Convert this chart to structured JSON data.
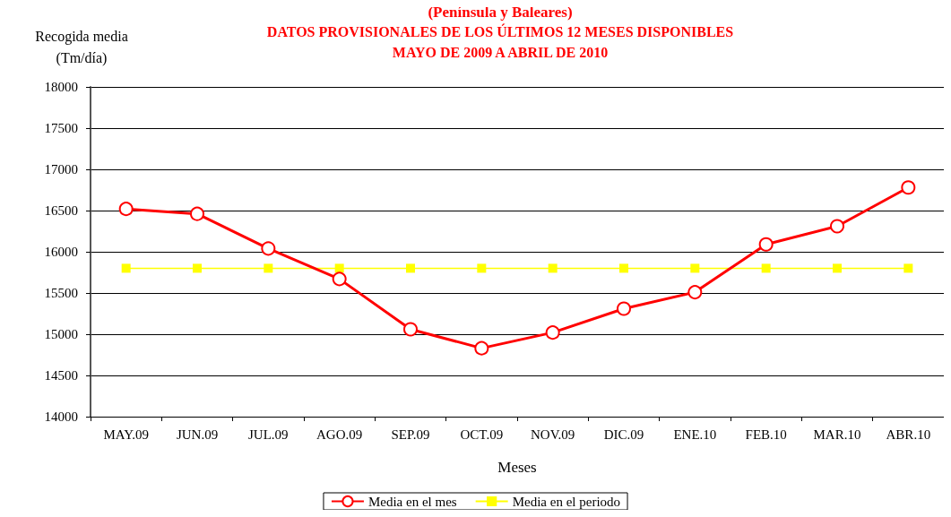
{
  "chart_data": {
    "type": "line",
    "title": "(Península y Baleares)",
    "subtitle": "DATOS PROVISIONALES DE LOS ÚLTIMOS 12 MESES DISPONIBLES\nMAYO DE 2009 A ABRIL DE 2010",
    "xlabel": "Meses",
    "ylabel": "Recogida media\n(Tm/día)",
    "categories": [
      "MAY.09",
      "JUN.09",
      "JUL.09",
      "AGO.09",
      "SEP.09",
      "OCT.09",
      "NOV.09",
      "DIC.09",
      "ENE.10",
      "FEB.10",
      "MAR.10",
      "ABR.10"
    ],
    "series": [
      {
        "name": "Media en el mes",
        "color": "#ff0000",
        "marker": "circle",
        "values": [
          16520,
          16460,
          16040,
          15670,
          15060,
          14830,
          15020,
          15310,
          15510,
          16090,
          16310,
          16780
        ]
      },
      {
        "name": "Media en el periodo",
        "color": "#ffff00",
        "marker": "square",
        "values": [
          15800,
          15800,
          15800,
          15800,
          15800,
          15800,
          15800,
          15800,
          15800,
          15800,
          15800,
          15800
        ]
      }
    ],
    "ylim": [
      14000,
      18000
    ],
    "yticks": [
      14000,
      14500,
      15000,
      15500,
      16000,
      16500,
      17000,
      17500,
      18000
    ],
    "grid": "y",
    "legend": "bottom",
    "line_style": "solid"
  }
}
